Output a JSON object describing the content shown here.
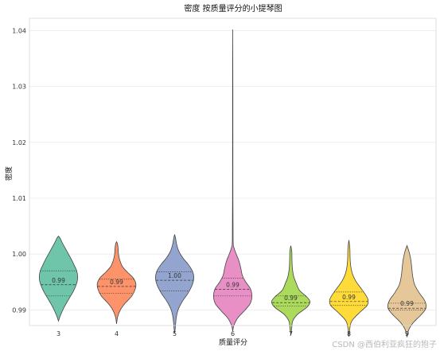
{
  "chart_data": {
    "type": "violin",
    "title": "密度 按质量评分的小提琴图",
    "xlabel": "质量评分",
    "ylabel": "密度",
    "ylim": [
      0.9872,
      1.0422
    ],
    "yticks": [
      "0.99",
      "1.00",
      "1.01",
      "1.02",
      "1.03",
      "1.04"
    ],
    "ytick_values": [
      0.99,
      1.0,
      1.01,
      1.02,
      1.03,
      1.04
    ],
    "grid": true,
    "categories": [
      "3",
      "4",
      "5",
      "6",
      "7",
      "8",
      "9"
    ],
    "series": [
      {
        "category": "3",
        "color": "#66c2a5",
        "min": 0.9893,
        "max": 1.0032,
        "q1": 0.9925,
        "median": 0.9945,
        "q3": 0.997,
        "median_label": "0.99",
        "profile": [
          [
            0.988,
            0.0
          ],
          [
            0.989,
            0.1
          ],
          [
            0.9905,
            0.3
          ],
          [
            0.992,
            0.55
          ],
          [
            0.9935,
            0.8
          ],
          [
            0.995,
            0.97
          ],
          [
            0.996,
            1.0
          ],
          [
            0.997,
            0.95
          ],
          [
            0.998,
            0.82
          ],
          [
            0.999,
            0.68
          ],
          [
            1.0,
            0.52
          ],
          [
            1.001,
            0.36
          ],
          [
            1.002,
            0.2
          ],
          [
            1.0028,
            0.09
          ],
          [
            1.0032,
            0.0
          ]
        ]
      },
      {
        "category": "4",
        "color": "#fc8d62",
        "min": 0.989,
        "max": 1.0022,
        "q1": 0.993,
        "median": 0.9942,
        "q3": 0.9955,
        "median_label": "0.99",
        "profile": [
          [
            0.9875,
            0.0
          ],
          [
            0.9888,
            0.06
          ],
          [
            0.99,
            0.2
          ],
          [
            0.9912,
            0.45
          ],
          [
            0.9925,
            0.8
          ],
          [
            0.9938,
            0.98
          ],
          [
            0.9948,
            1.0
          ],
          [
            0.9958,
            0.85
          ],
          [
            0.9968,
            0.55
          ],
          [
            0.9978,
            0.3
          ],
          [
            0.999,
            0.16
          ],
          [
            1.0,
            0.1
          ],
          [
            1.001,
            0.08
          ],
          [
            1.0018,
            0.05
          ],
          [
            1.0022,
            0.0
          ]
        ]
      },
      {
        "category": "5",
        "color": "#8da0cb",
        "min": 0.988,
        "max": 1.003,
        "q1": 0.9934,
        "median": 0.9953,
        "q3": 0.9968,
        "median_label": "1.00",
        "profile": [
          [
            0.9858,
            0.0
          ],
          [
            0.987,
            0.04
          ],
          [
            0.9885,
            0.08
          ],
          [
            0.99,
            0.18
          ],
          [
            0.9915,
            0.4
          ],
          [
            0.993,
            0.7
          ],
          [
            0.9945,
            0.92
          ],
          [
            0.9958,
            1.0
          ],
          [
            0.997,
            0.92
          ],
          [
            0.9982,
            0.7
          ],
          [
            0.9992,
            0.45
          ],
          [
            1.0005,
            0.22
          ],
          [
            1.0018,
            0.1
          ],
          [
            1.0028,
            0.05
          ],
          [
            1.0035,
            0.0
          ]
        ]
      },
      {
        "category": "6",
        "color": "#e78ac3",
        "min": 0.987,
        "max": 1.0402,
        "q1": 0.9925,
        "median": 0.9937,
        "q3": 0.9957,
        "median_label": "0.99",
        "profile": [
          [
            0.9862,
            0.0
          ],
          [
            0.9872,
            0.06
          ],
          [
            0.9885,
            0.25
          ],
          [
            0.99,
            0.65
          ],
          [
            0.9912,
            0.92
          ],
          [
            0.9925,
            1.0
          ],
          [
            0.9938,
            0.92
          ],
          [
            0.995,
            0.68
          ],
          [
            0.9962,
            0.5
          ],
          [
            0.9975,
            0.42
          ],
          [
            0.9988,
            0.32
          ],
          [
            1.0,
            0.18
          ],
          [
            1.0012,
            0.06
          ],
          [
            1.0025,
            0.02
          ],
          [
            1.01,
            0.01
          ],
          [
            1.03,
            0.008
          ],
          [
            1.0402,
            0.0
          ]
        ]
      },
      {
        "category": "7",
        "color": "#a6d854",
        "min": 0.9872,
        "max": 1.0013,
        "q1": 0.9907,
        "median": 0.9913,
        "q3": 0.9925,
        "median_label": "0.99",
        "profile": [
          [
            0.9855,
            0.0
          ],
          [
            0.9868,
            0.05
          ],
          [
            0.988,
            0.1
          ],
          [
            0.9892,
            0.35
          ],
          [
            0.9905,
            0.85
          ],
          [
            0.9915,
            1.0
          ],
          [
            0.9925,
            0.78
          ],
          [
            0.9935,
            0.45
          ],
          [
            0.9948,
            0.28
          ],
          [
            0.996,
            0.15
          ],
          [
            0.9975,
            0.08
          ],
          [
            0.999,
            0.06
          ],
          [
            1.0005,
            0.05
          ],
          [
            1.0015,
            0.0
          ]
        ]
      },
      {
        "category": "8",
        "color": "#ffd92f",
        "min": 0.9872,
        "max": 1.0025,
        "q1": 0.9908,
        "median": 0.9915,
        "q3": 0.9932,
        "median_label": "0.99",
        "profile": [
          [
            0.9852,
            0.0
          ],
          [
            0.9865,
            0.04
          ],
          [
            0.988,
            0.15
          ],
          [
            0.9895,
            0.55
          ],
          [
            0.9908,
            0.95
          ],
          [
            0.9918,
            1.0
          ],
          [
            0.9928,
            0.85
          ],
          [
            0.994,
            0.6
          ],
          [
            0.9952,
            0.35
          ],
          [
            0.9965,
            0.18
          ],
          [
            0.998,
            0.09
          ],
          [
            0.9995,
            0.06
          ],
          [
            1.001,
            0.05
          ],
          [
            1.0025,
            0.0
          ]
        ]
      },
      {
        "category": "9",
        "color": "#e5c494",
        "min": 0.986,
        "max": 1.0015,
        "q1": 0.99,
        "median": 0.9903,
        "q3": 0.9912,
        "median_label": "0.99",
        "profile": [
          [
            0.9852,
            0.0
          ],
          [
            0.9865,
            0.1
          ],
          [
            0.9878,
            0.35
          ],
          [
            0.989,
            0.7
          ],
          [
            0.99,
            0.95
          ],
          [
            0.9908,
            1.0
          ],
          [
            0.9918,
            0.9
          ],
          [
            0.993,
            0.65
          ],
          [
            0.9945,
            0.4
          ],
          [
            0.996,
            0.3
          ],
          [
            0.9975,
            0.25
          ],
          [
            0.999,
            0.2
          ],
          [
            1.0005,
            0.1
          ],
          [
            1.0015,
            0.0
          ]
        ]
      }
    ]
  },
  "watermark": "CSDN @西伯利亚疯狂的狍子"
}
